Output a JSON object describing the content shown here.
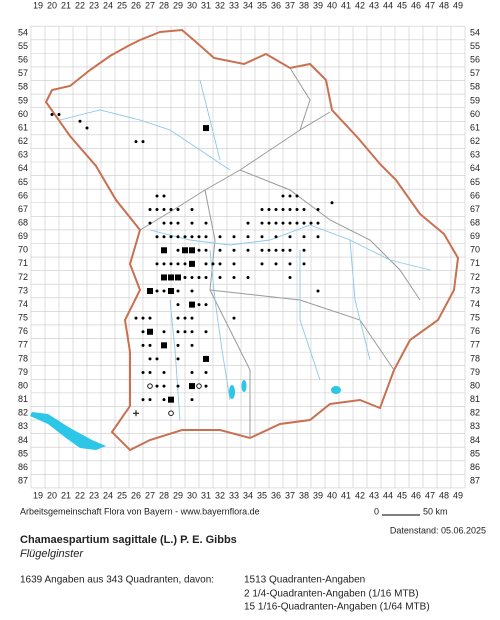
{
  "map": {
    "columns": [
      19,
      20,
      21,
      22,
      23,
      24,
      25,
      26,
      27,
      28,
      29,
      30,
      31,
      32,
      33,
      34,
      35,
      36,
      37,
      38,
      39,
      40,
      41,
      42,
      43,
      44,
      45,
      46,
      47,
      48,
      49
    ],
    "rows": [
      54,
      55,
      56,
      57,
      58,
      59,
      60,
      61,
      62,
      63,
      64,
      65,
      66,
      67,
      68,
      69,
      70,
      71,
      72,
      73,
      74,
      75,
      76,
      77,
      78,
      79,
      80,
      81,
      82,
      83,
      84,
      85,
      86,
      87
    ],
    "dots": [
      [
        20,
        60,
        "d"
      ],
      [
        20.5,
        60,
        "d"
      ],
      [
        22,
        60.5,
        "d"
      ],
      [
        22.5,
        61,
        "d"
      ],
      [
        26,
        62,
        "d"
      ],
      [
        26.5,
        62,
        "d"
      ],
      [
        31,
        61,
        "s"
      ],
      [
        27.5,
        66,
        "d"
      ],
      [
        28,
        66,
        "d"
      ],
      [
        36.5,
        66,
        "d"
      ],
      [
        37,
        66,
        "d"
      ],
      [
        37.5,
        66,
        "d"
      ],
      [
        27,
        67,
        "d"
      ],
      [
        27.5,
        67,
        "d"
      ],
      [
        28,
        67,
        "d"
      ],
      [
        28.5,
        67,
        "d"
      ],
      [
        29,
        67,
        "d"
      ],
      [
        30,
        67,
        "d"
      ],
      [
        35,
        67,
        "d"
      ],
      [
        35.5,
        67,
        "d"
      ],
      [
        36,
        67,
        "d"
      ],
      [
        36.5,
        67,
        "d"
      ],
      [
        37,
        67,
        "d"
      ],
      [
        37.5,
        67,
        "d"
      ],
      [
        38,
        67,
        "d"
      ],
      [
        39,
        67,
        "d"
      ],
      [
        40,
        66.5,
        "d"
      ],
      [
        27,
        68,
        "d"
      ],
      [
        28,
        68,
        "d"
      ],
      [
        28.5,
        68,
        "d"
      ],
      [
        29,
        68,
        "d"
      ],
      [
        30,
        68,
        "d"
      ],
      [
        31,
        68,
        "d"
      ],
      [
        34,
        68,
        "d"
      ],
      [
        35,
        68,
        "d"
      ],
      [
        35.5,
        68,
        "d"
      ],
      [
        36,
        68,
        "d"
      ],
      [
        36.5,
        68,
        "d"
      ],
      [
        37,
        68,
        "d"
      ],
      [
        37.5,
        68,
        "d"
      ],
      [
        38,
        68,
        "d"
      ],
      [
        38.5,
        68,
        "d"
      ],
      [
        39,
        68,
        "d"
      ],
      [
        27.5,
        69,
        "d"
      ],
      [
        28,
        69,
        "d"
      ],
      [
        28.5,
        69,
        "d"
      ],
      [
        29,
        69,
        "d"
      ],
      [
        29.5,
        69,
        "d"
      ],
      [
        30,
        69,
        "d"
      ],
      [
        30.5,
        69,
        "d"
      ],
      [
        31,
        69,
        "d"
      ],
      [
        32,
        69,
        "d"
      ],
      [
        33,
        69,
        "d"
      ],
      [
        34,
        69,
        "d"
      ],
      [
        35,
        69,
        "d"
      ],
      [
        36,
        69,
        "d"
      ],
      [
        37,
        69,
        "d"
      ],
      [
        38,
        69,
        "d"
      ],
      [
        39,
        69,
        "d"
      ],
      [
        28,
        70,
        "s"
      ],
      [
        29,
        70,
        "d"
      ],
      [
        29.5,
        70,
        "s"
      ],
      [
        30,
        70,
        "s"
      ],
      [
        30.5,
        70,
        "d"
      ],
      [
        31,
        70,
        "d"
      ],
      [
        32,
        70,
        "d"
      ],
      [
        33,
        70,
        "d"
      ],
      [
        34,
        70,
        "d"
      ],
      [
        35,
        70,
        "d"
      ],
      [
        35.5,
        70,
        "d"
      ],
      [
        36,
        70,
        "d"
      ],
      [
        36.5,
        70,
        "d"
      ],
      [
        37,
        70,
        "d"
      ],
      [
        38,
        70,
        "d"
      ],
      [
        27.5,
        71,
        "d"
      ],
      [
        28,
        71,
        "d"
      ],
      [
        28.5,
        71,
        "d"
      ],
      [
        29,
        71,
        "d"
      ],
      [
        29.5,
        71,
        "d"
      ],
      [
        30,
        71,
        "s"
      ],
      [
        31,
        71,
        "d"
      ],
      [
        31.5,
        71,
        "d"
      ],
      [
        32,
        71,
        "d"
      ],
      [
        33,
        71,
        "d"
      ],
      [
        35,
        71,
        "d"
      ],
      [
        36,
        71,
        "d"
      ],
      [
        37,
        71,
        "d"
      ],
      [
        38,
        71,
        "d"
      ],
      [
        28,
        72,
        "s"
      ],
      [
        28.5,
        72,
        "s"
      ],
      [
        29,
        72,
        "s"
      ],
      [
        29.5,
        72,
        "d"
      ],
      [
        30,
        72,
        "d"
      ],
      [
        30.5,
        72,
        "d"
      ],
      [
        31,
        72,
        "d"
      ],
      [
        32,
        72,
        "d"
      ],
      [
        33,
        72,
        "d"
      ],
      [
        34,
        72,
        "d"
      ],
      [
        37,
        72,
        "d"
      ],
      [
        27,
        73,
        "s"
      ],
      [
        27.5,
        73,
        "d"
      ],
      [
        28,
        73,
        "d"
      ],
      [
        28.5,
        73,
        "s"
      ],
      [
        29,
        73,
        "d"
      ],
      [
        30,
        73,
        "d"
      ],
      [
        39,
        73,
        "d"
      ],
      [
        29,
        74,
        "d"
      ],
      [
        30,
        74,
        "s"
      ],
      [
        30.5,
        74,
        "d"
      ],
      [
        31,
        74,
        "d"
      ],
      [
        26,
        75,
        "d"
      ],
      [
        26.5,
        75,
        "d"
      ],
      [
        27,
        75,
        "d"
      ],
      [
        29,
        75,
        "d"
      ],
      [
        29.5,
        75,
        "d"
      ],
      [
        30,
        75,
        "d"
      ],
      [
        33,
        75,
        "d"
      ],
      [
        26.5,
        76,
        "d"
      ],
      [
        27,
        76,
        "s"
      ],
      [
        28,
        76,
        "d"
      ],
      [
        29,
        76,
        "d"
      ],
      [
        29.5,
        76,
        "d"
      ],
      [
        30,
        76,
        "d"
      ],
      [
        31,
        76,
        "d"
      ],
      [
        26.5,
        77,
        "d"
      ],
      [
        27,
        77,
        "d"
      ],
      [
        28,
        77,
        "s"
      ],
      [
        29,
        77,
        "d"
      ],
      [
        30,
        77,
        "d"
      ],
      [
        27,
        78,
        "d"
      ],
      [
        27.5,
        78,
        "d"
      ],
      [
        29,
        78,
        "d"
      ],
      [
        31,
        78,
        "s"
      ],
      [
        26.5,
        79,
        "d"
      ],
      [
        27,
        79,
        "d"
      ],
      [
        28,
        79,
        "d"
      ],
      [
        30,
        79,
        "d"
      ],
      [
        31,
        79,
        "d"
      ],
      [
        27,
        80,
        "o"
      ],
      [
        27.5,
        80,
        "d"
      ],
      [
        28,
        80,
        "d"
      ],
      [
        29,
        80,
        "d"
      ],
      [
        30,
        80,
        "s"
      ],
      [
        30.5,
        80,
        "o"
      ],
      [
        31,
        80,
        "d"
      ],
      [
        26.5,
        81,
        "d"
      ],
      [
        27,
        81,
        "d"
      ],
      [
        28,
        81,
        "d"
      ],
      [
        28.5,
        81,
        "s"
      ],
      [
        30,
        81,
        "d"
      ],
      [
        26,
        82,
        "+"
      ],
      [
        28.5,
        82,
        "o"
      ]
    ]
  },
  "footer": {
    "credit": "Arbeitsgemeinschaft Flora von Bayern - www.bayernflora.de",
    "scale_start": "0",
    "scale_end": "50 km",
    "date": "Datenstand: 05.06.2025",
    "species": "Chamaespartium sagittale (L.) P. E. Gibbs",
    "common_name": "Flügelginster",
    "summary": "1639 Angaben aus 343 Quadranten, davon:",
    "breakdown": [
      "1513 Quadranten-Angaben",
      "2 1/4-Quadranten-Angaben (1/16 MTB)",
      "15 1/16-Quadranten-Angaben (1/64 MTB)"
    ]
  }
}
